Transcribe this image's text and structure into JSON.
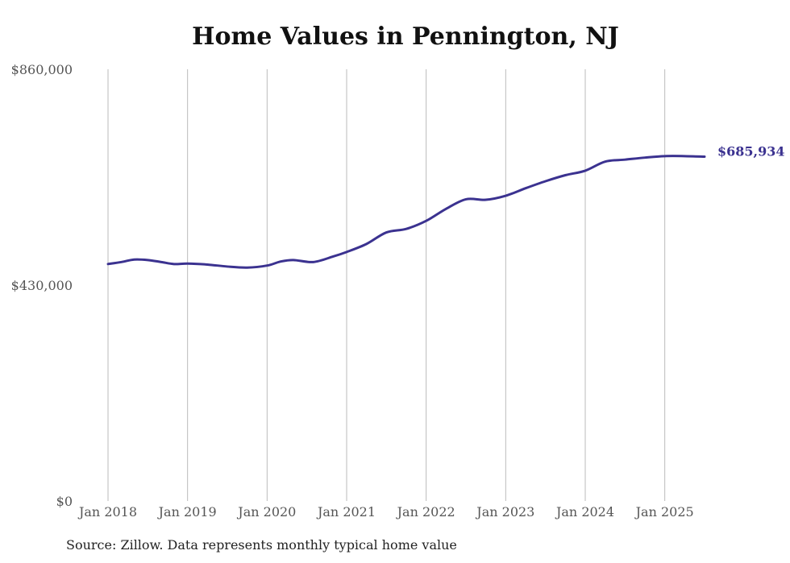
{
  "chart_data": {
    "type": "line",
    "title": "Home Values in Pennington, NJ",
    "xlabel": "",
    "ylabel": "",
    "ylim": [
      0,
      860000
    ],
    "y_ticks": [
      {
        "value": 0,
        "label": "$0"
      },
      {
        "value": 430000,
        "label": "$430,000"
      },
      {
        "value": 860000,
        "label": "$860,000"
      }
    ],
    "x_ticks": [
      {
        "value": 2018.0,
        "label": "Jan 2018"
      },
      {
        "value": 2019.0,
        "label": "Jan 2019"
      },
      {
        "value": 2020.0,
        "label": "Jan 2020"
      },
      {
        "value": 2021.0,
        "label": "Jan 2021"
      },
      {
        "value": 2022.0,
        "label": "Jan 2022"
      },
      {
        "value": 2023.0,
        "label": "Jan 2023"
      },
      {
        "value": 2024.0,
        "label": "Jan 2024"
      },
      {
        "value": 2025.0,
        "label": "Jan 2025"
      }
    ],
    "xlim": [
      2018.0,
      2025.5
    ],
    "grid": "vertical",
    "legend": "none",
    "series": [
      {
        "color": "#3b3290",
        "end_label": "$685,934",
        "points": [
          {
            "x": 2018.0,
            "y": 472000
          },
          {
            "x": 2018.17,
            "y": 476000
          },
          {
            "x": 2018.33,
            "y": 481000
          },
          {
            "x": 2018.5,
            "y": 480000
          },
          {
            "x": 2018.67,
            "y": 476000
          },
          {
            "x": 2018.83,
            "y": 472000
          },
          {
            "x": 2019.0,
            "y": 473000
          },
          {
            "x": 2019.25,
            "y": 471000
          },
          {
            "x": 2019.5,
            "y": 467000
          },
          {
            "x": 2019.75,
            "y": 465000
          },
          {
            "x": 2020.0,
            "y": 469000
          },
          {
            "x": 2020.17,
            "y": 477000
          },
          {
            "x": 2020.33,
            "y": 480000
          },
          {
            "x": 2020.58,
            "y": 476000
          },
          {
            "x": 2020.83,
            "y": 487000
          },
          {
            "x": 2021.0,
            "y": 496000
          },
          {
            "x": 2021.25,
            "y": 512000
          },
          {
            "x": 2021.5,
            "y": 535000
          },
          {
            "x": 2021.75,
            "y": 542000
          },
          {
            "x": 2022.0,
            "y": 558000
          },
          {
            "x": 2022.25,
            "y": 582000
          },
          {
            "x": 2022.5,
            "y": 601000
          },
          {
            "x": 2022.75,
            "y": 600000
          },
          {
            "x": 2023.0,
            "y": 608000
          },
          {
            "x": 2023.25,
            "y": 623000
          },
          {
            "x": 2023.5,
            "y": 637000
          },
          {
            "x": 2023.75,
            "y": 649000
          },
          {
            "x": 2024.0,
            "y": 658000
          },
          {
            "x": 2024.25,
            "y": 676000
          },
          {
            "x": 2024.5,
            "y": 680000
          },
          {
            "x": 2024.75,
            "y": 684000
          },
          {
            "x": 2025.0,
            "y": 687000
          },
          {
            "x": 2025.25,
            "y": 687000
          },
          {
            "x": 2025.5,
            "y": 685934
          }
        ]
      }
    ]
  },
  "source_note": "Source: Zillow. Data represents monthly typical home value"
}
